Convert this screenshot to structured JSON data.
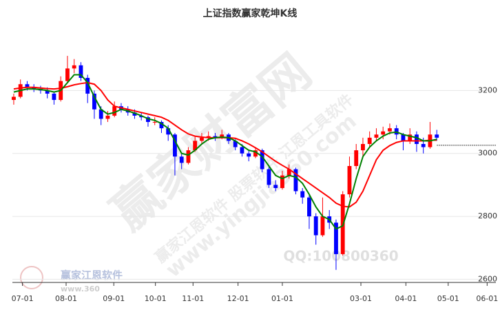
{
  "chart_data": {
    "type": "candlestick",
    "title": "上证指数赢家乾坤K线",
    "xlim": [
      -0.2,
      71.8
    ],
    "xticks": [
      {
        "value": 1.3,
        "label": "07-01"
      },
      {
        "value": 7.8,
        "label": "08-01"
      },
      {
        "value": 14.9,
        "label": "09-01"
      },
      {
        "value": 21.1,
        "label": "10-01"
      },
      {
        "value": 26.7,
        "label": "11-01"
      },
      {
        "value": 33.4,
        "label": "12-01"
      },
      {
        "value": 40,
        "label": "01-01"
      },
      {
        "value": 51.7,
        "label": "03-01"
      },
      {
        "value": 58.4,
        "label": "04-01"
      },
      {
        "value": 64.7,
        "label": "05-01"
      },
      {
        "value": 70.5,
        "label": "06-01"
      }
    ],
    "ylim": [
      2590,
      3400
    ],
    "yticks": [
      2600,
      2800,
      3000,
      3200
    ],
    "grid": true,
    "up_color": "#ff0000",
    "down_color": "#0000ff",
    "open": [
      3170,
      3180,
      3220,
      3210,
      3205,
      3200,
      3190,
      3170,
      3230,
      3270,
      3280,
      3240,
      3190,
      3140,
      3110,
      3120,
      3150,
      3140,
      3130,
      3120,
      3115,
      3100,
      3100,
      3080,
      3060,
      2990,
      2970,
      3010,
      3040,
      3050,
      3055,
      3050,
      3060,
      3040,
      3020,
      3000,
      2990,
      3010,
      2950,
      2900,
      2890,
      2930,
      2950,
      2880,
      2860,
      2800,
      2740,
      2800,
      2780,
      2680,
      2870,
      2960,
      3010,
      3030,
      3050,
      3060,
      3070,
      3080,
      3060,
      3040,
      3060,
      3030,
      3020,
      3060
    ],
    "high": [
      3190,
      3235,
      3230,
      3220,
      3215,
      3210,
      3195,
      3245,
      3310,
      3300,
      3290,
      3250,
      3200,
      3150,
      3135,
      3165,
      3160,
      3150,
      3140,
      3130,
      3120,
      3115,
      3105,
      3090,
      3065,
      3000,
      3020,
      3055,
      3065,
      3070,
      3065,
      3075,
      3065,
      3045,
      3030,
      3010,
      3020,
      3015,
      2960,
      2915,
      2945,
      2965,
      2955,
      2890,
      2870,
      2810,
      2860,
      2820,
      2790,
      2880,
      2990,
      3030,
      3050,
      3070,
      3080,
      3085,
      3095,
      3090,
      3065,
      3080,
      3070,
      3050,
      3100,
      3075
    ],
    "low": [
      3155,
      3175,
      3200,
      3195,
      3190,
      3175,
      3155,
      3165,
      3225,
      3255,
      3230,
      3160,
      3110,
      3090,
      3100,
      3115,
      3130,
      3120,
      3110,
      3105,
      3085,
      3090,
      3065,
      3040,
      2930,
      2950,
      2965,
      3005,
      3030,
      3040,
      3040,
      3045,
      3030,
      3010,
      2990,
      2975,
      2985,
      2940,
      2890,
      2880,
      2885,
      2920,
      2870,
      2840,
      2760,
      2710,
      2735,
      2760,
      2630,
      2675,
      2860,
      2950,
      2990,
      3020,
      3040,
      3045,
      3060,
      3045,
      3010,
      3030,
      3005,
      3000,
      3015,
      3040
    ],
    "close": [
      3180,
      3220,
      3210,
      3205,
      3200,
      3190,
      3170,
      3230,
      3270,
      3280,
      3240,
      3190,
      3140,
      3110,
      3120,
      3150,
      3140,
      3130,
      3120,
      3115,
      3100,
      3100,
      3080,
      3060,
      2990,
      2970,
      3010,
      3040,
      3050,
      3055,
      3050,
      3060,
      3040,
      3020,
      3000,
      2990,
      3010,
      2950,
      2900,
      2890,
      2930,
      2950,
      2880,
      2860,
      2800,
      2740,
      2800,
      2780,
      2680,
      2870,
      2960,
      3010,
      3030,
      3050,
      3060,
      3070,
      3080,
      3060,
      3040,
      3060,
      3030,
      3020,
      3060,
      3050
    ],
    "lines": [
      {
        "color": "#ff0000",
        "values": [
          3205,
          3208,
          3210,
          3210,
          3208,
          3206,
          3205,
          3207,
          3212,
          3218,
          3222,
          3225,
          3220,
          3200,
          3170,
          3150,
          3145,
          3140,
          3135,
          3130,
          3125,
          3120,
          3115,
          3105,
          3090,
          3075,
          3062,
          3055,
          3052,
          3050,
          3050,
          3050,
          3050,
          3048,
          3040,
          3030,
          3018,
          3005,
          2990,
          2975,
          2962,
          2950,
          2935,
          2920,
          2905,
          2890,
          2875,
          2860,
          2842,
          2832,
          2830,
          2845,
          2880,
          2930,
          2980,
          3010,
          3025,
          3035,
          3040,
          3040,
          3040,
          3040,
          3042,
          3042
        ]
      },
      {
        "color": "#008000",
        "values": [
          3195,
          3200,
          3205,
          3205,
          3203,
          3200,
          3195,
          3200,
          3225,
          3250,
          3250,
          3225,
          3180,
          3140,
          3125,
          3130,
          3140,
          3135,
          3128,
          3120,
          3110,
          3105,
          3095,
          3080,
          3040,
          3000,
          2995,
          3010,
          3030,
          3045,
          3050,
          3052,
          3050,
          3040,
          3025,
          3010,
          3005,
          2990,
          2960,
          2930,
          2920,
          2930,
          2925,
          2905,
          2870,
          2830,
          2800,
          2790,
          2760,
          2770,
          2840,
          2920,
          2990,
          3020,
          3040,
          3055,
          3065,
          3068,
          3060,
          3055,
          3050,
          3040,
          3040,
          3045
        ]
      }
    ],
    "last_price": 3026
  },
  "watermarks": [
    "赢家财富网",
    "www.yingjia360.com",
    "赢家江恩软件 股票软件 江恩工具软件",
    "QQ:100800360",
    "赢家江恩软件",
    "www.360"
  ]
}
